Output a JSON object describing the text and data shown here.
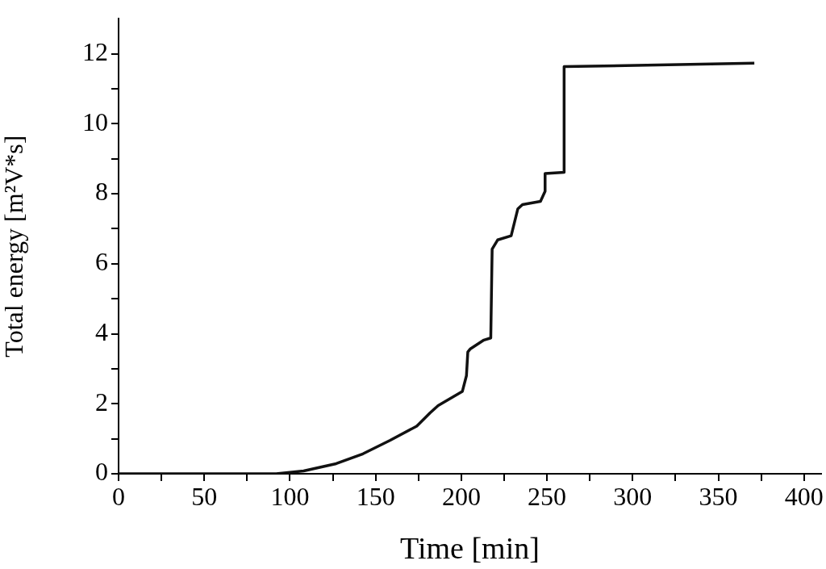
{
  "chart_data": {
    "type": "line",
    "xlabel": "Time [min]",
    "ylabel": "Total energy [m²V*s]",
    "x": [
      0,
      50,
      92,
      108,
      127,
      142.6,
      158.3,
      174,
      181.8,
      186.5,
      200.6,
      203,
      203.8,
      205.3,
      213.2,
      217.2,
      218,
      221.2,
      229.1,
      233,
      235.7,
      246.2,
      248.9,
      248.9,
      260,
      260,
      371
    ],
    "series": [
      {
        "color": "#111111",
        "values": [
          0,
          0,
          0,
          0.08,
          0.29,
          0.57,
          0.95,
          1.36,
          1.74,
          1.95,
          2.35,
          2.8,
          3.48,
          3.57,
          3.82,
          3.88,
          6.42,
          6.68,
          6.8,
          7.57,
          7.69,
          7.78,
          8.07,
          8.58,
          8.61,
          11.63,
          11.73
        ]
      }
    ],
    "xlim": [
      0,
      410
    ],
    "ylim": [
      0,
      13
    ],
    "xticks": [
      0,
      {
        "value": 25,
        "label": null
      },
      50,
      {
        "value": 75,
        "label": null
      },
      100,
      {
        "value": 125,
        "label": null
      },
      150,
      {
        "value": 175,
        "label": null
      },
      200,
      {
        "value": 225,
        "label": null
      },
      250,
      {
        "value": 275,
        "label": null
      },
      300,
      {
        "value": 325,
        "label": null
      },
      350,
      {
        "value": 375,
        "label": null
      },
      400
    ],
    "yticks": [
      0,
      {
        "value": 1,
        "label": null
      },
      2,
      {
        "value": 3,
        "label": null
      },
      4,
      {
        "value": 5,
        "label": null
      },
      6,
      {
        "value": 7,
        "label": null
      },
      8,
      {
        "value": 9,
        "label": null
      },
      10,
      {
        "value": 11,
        "label": null
      },
      12
    ],
    "grid": false,
    "legend": false,
    "marker": "none",
    "line_style": "solid"
  }
}
